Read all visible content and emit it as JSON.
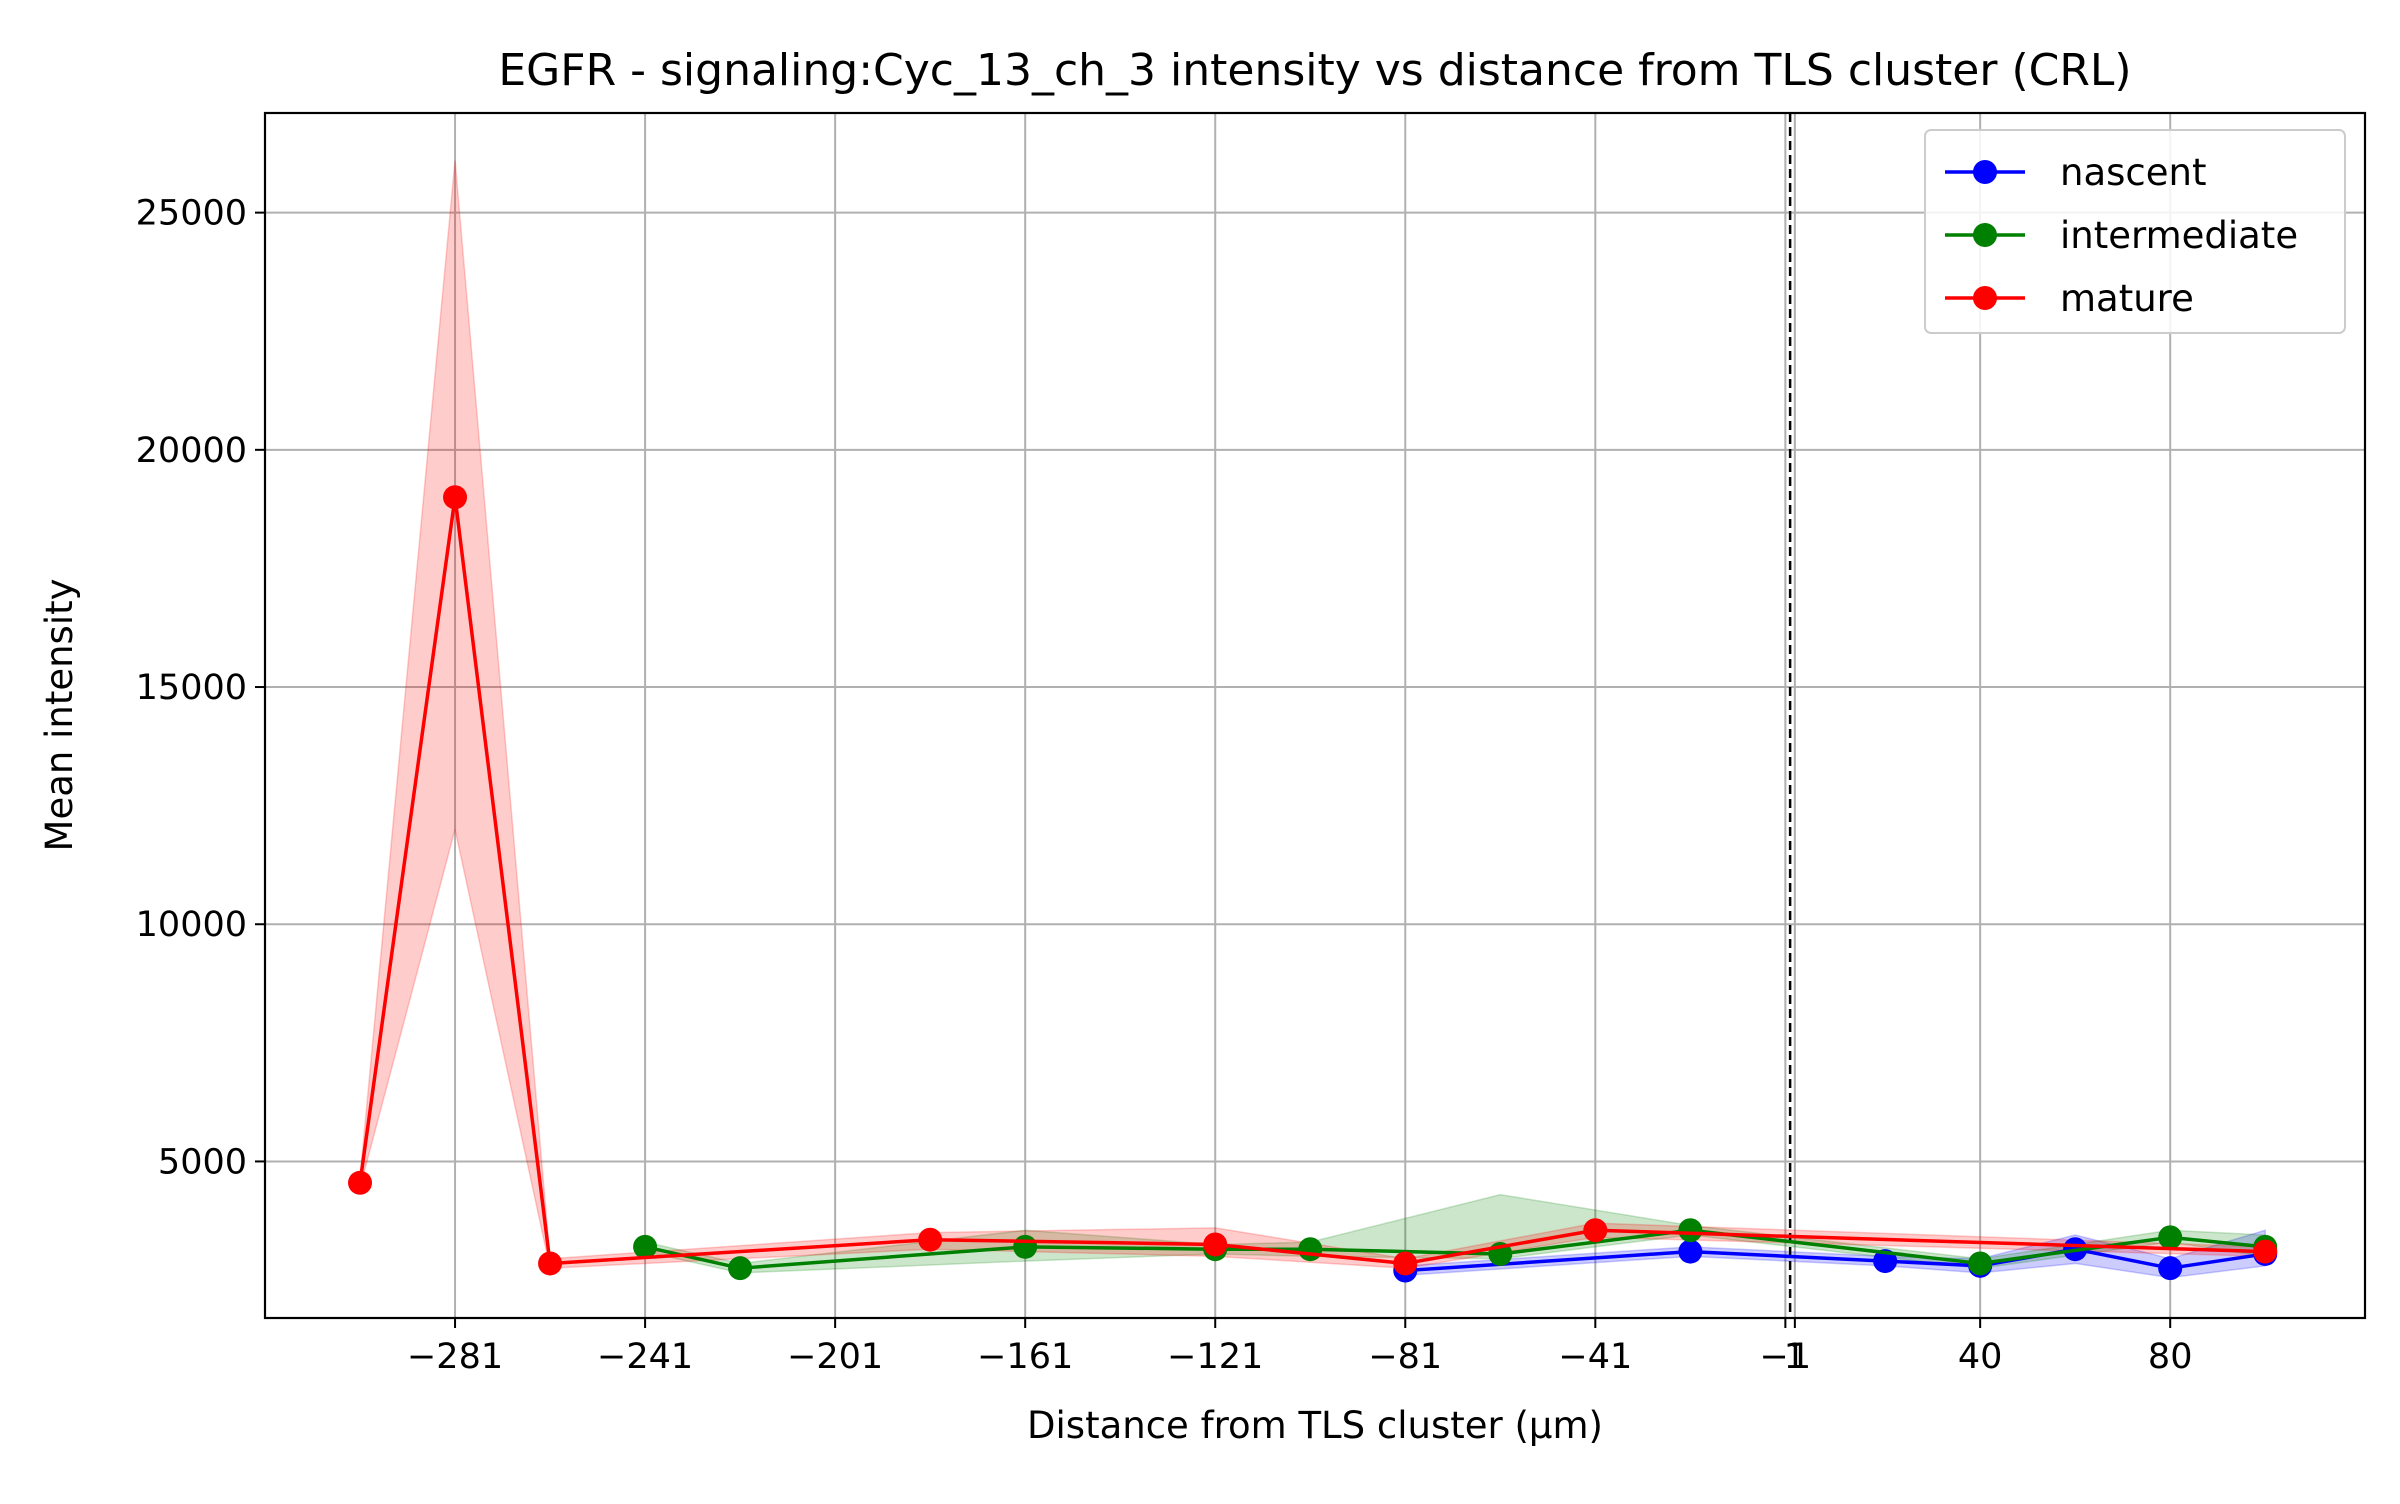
{
  "chart_data": {
    "type": "line",
    "title": "EGFR - signaling:Cyc_13_ch_3 intensity vs distance from TLS cluster (CRL)",
    "xlabel": "Distance from TLS cluster (μm)",
    "ylabel": "Mean intensity",
    "xlim": [
      -321,
      121
    ],
    "ylim": [
      1700,
      27100
    ],
    "xticks": [
      -281,
      -241,
      -201,
      -161,
      -121,
      -81,
      -41,
      -1,
      1,
      40,
      80
    ],
    "xtick_labels": [
      "−281",
      "−241",
      "−201",
      "−161",
      "−121",
      "−81",
      "−41",
      "−1",
      "1",
      "40",
      "80"
    ],
    "yticks": [
      5000,
      10000,
      15000,
      20000,
      25000
    ],
    "ytick_labels": [
      "5000",
      "10000",
      "15000",
      "20000",
      "25000"
    ],
    "grid": true,
    "legend_position": "top-right",
    "vline_x": 0,
    "series": [
      {
        "name": "nascent",
        "color": "#0000ff",
        "band_color": "#0000ff",
        "x": [
          -81,
          -21,
          20,
          40,
          60,
          80,
          100
        ],
        "y": [
          2700,
          3100,
          2900,
          2800,
          3150,
          2750,
          3050
        ],
        "lower": [
          2600,
          3000,
          2800,
          2650,
          2850,
          2550,
          2800
        ],
        "upper": [
          2800,
          3200,
          3000,
          2950,
          3450,
          2950,
          3550
        ]
      },
      {
        "name": "intermediate",
        "color": "#008000",
        "band_color": "#008000",
        "x": [
          -241,
          -221,
          -161,
          -121,
          -101,
          -61,
          -21,
          40,
          80,
          100
        ],
        "y": [
          3200,
          2750,
          3200,
          3150,
          3150,
          3050,
          3550,
          2850,
          3400,
          3200
        ],
        "lower": [
          3100,
          2650,
          2900,
          3050,
          3000,
          2950,
          3450,
          2750,
          3300,
          3000
        ],
        "upper": [
          3300,
          2850,
          3550,
          3250,
          3300,
          4300,
          3650,
          2950,
          3550,
          3450
        ]
      },
      {
        "name": "mature",
        "color": "#ff0000",
        "band_color": "#ff0000",
        "x": [
          -301,
          -281,
          -261,
          -181,
          -121,
          -81,
          -41,
          100
        ],
        "y": [
          4550,
          19000,
          2850,
          3350,
          3250,
          2850,
          3550,
          3100
        ],
        "lower": [
          4450,
          12000,
          2750,
          3150,
          3000,
          2750,
          3400,
          3000
        ],
        "upper": [
          4650,
          26100,
          2950,
          3500,
          3600,
          2950,
          3700,
          3200
        ]
      }
    ]
  }
}
